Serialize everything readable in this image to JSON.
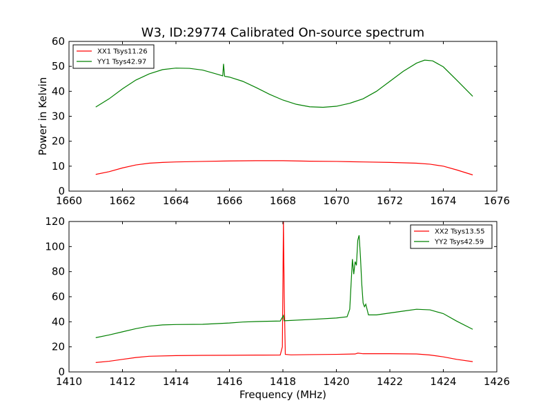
{
  "figure": {
    "title": "W3, ID:29774 Calibrated On-source spectrum"
  },
  "chart_data": [
    {
      "type": "line",
      "title": "W3, ID:29774 Calibrated On-source spectrum",
      "xlabel": "",
      "ylabel": "Power in Kelvin",
      "xlim": [
        1660,
        1676
      ],
      "ylim": [
        0,
        60
      ],
      "xticks": [
        "1660",
        "1662",
        "1664",
        "1666",
        "1668",
        "1670",
        "1672",
        "1674",
        "1676"
      ],
      "yticks": [
        "0",
        "10",
        "20",
        "30",
        "40",
        "50",
        "60"
      ],
      "grid": false,
      "legend_position": "top-left",
      "series": [
        {
          "name": "XX1 Tsys11.26",
          "color": "#ff0000",
          "points": [
            [
              1661.0,
              6.7
            ],
            [
              1661.5,
              7.8
            ],
            [
              1662.0,
              9.3
            ],
            [
              1662.5,
              10.5
            ],
            [
              1663.0,
              11.2
            ],
            [
              1663.5,
              11.5
            ],
            [
              1664.0,
              11.7
            ],
            [
              1665.0,
              11.9
            ],
            [
              1666.0,
              12.1
            ],
            [
              1667.0,
              12.2
            ],
            [
              1668.0,
              12.2
            ],
            [
              1669.0,
              12.0
            ],
            [
              1670.0,
              11.9
            ],
            [
              1671.0,
              11.7
            ],
            [
              1672.0,
              11.5
            ],
            [
              1673.0,
              11.2
            ],
            [
              1673.5,
              10.8
            ],
            [
              1674.0,
              10.0
            ],
            [
              1674.5,
              8.5
            ],
            [
              1675.1,
              6.5
            ]
          ]
        },
        {
          "name": "YY1 Tsys42.97",
          "color": "#008000",
          "points": [
            [
              1661.0,
              33.7
            ],
            [
              1661.5,
              37.0
            ],
            [
              1662.0,
              41.0
            ],
            [
              1662.5,
              44.5
            ],
            [
              1663.0,
              47.0
            ],
            [
              1663.5,
              48.7
            ],
            [
              1664.0,
              49.3
            ],
            [
              1664.5,
              49.2
            ],
            [
              1665.0,
              48.5
            ],
            [
              1665.5,
              47.0
            ],
            [
              1665.75,
              46.2
            ],
            [
              1665.78,
              51.0
            ],
            [
              1665.82,
              46.0
            ],
            [
              1666.0,
              45.7
            ],
            [
              1666.5,
              44.0
            ],
            [
              1667.0,
              41.5
            ],
            [
              1667.5,
              38.8
            ],
            [
              1668.0,
              36.5
            ],
            [
              1668.5,
              34.8
            ],
            [
              1669.0,
              33.8
            ],
            [
              1669.5,
              33.6
            ],
            [
              1670.0,
              34.0
            ],
            [
              1670.5,
              35.2
            ],
            [
              1671.0,
              37.0
            ],
            [
              1671.5,
              40.0
            ],
            [
              1672.0,
              44.0
            ],
            [
              1672.5,
              48.0
            ],
            [
              1673.0,
              51.3
            ],
            [
              1673.3,
              52.5
            ],
            [
              1673.6,
              52.2
            ],
            [
              1674.0,
              49.8
            ],
            [
              1674.5,
              44.5
            ],
            [
              1675.1,
              38.0
            ]
          ]
        }
      ]
    },
    {
      "type": "line",
      "title": "",
      "xlabel": "Frequency (MHz)",
      "ylabel": "",
      "xlim": [
        1410,
        1426
      ],
      "ylim": [
        0,
        120
      ],
      "xticks": [
        "1410",
        "1412",
        "1414",
        "1416",
        "1418",
        "1420",
        "1422",
        "1424",
        "1426"
      ],
      "yticks": [
        "0",
        "20",
        "40",
        "60",
        "80",
        "100",
        "120"
      ],
      "grid": false,
      "legend_position": "top-right",
      "series": [
        {
          "name": "XX2 Tsys13.55",
          "color": "#ff0000",
          "points": [
            [
              1411.0,
              7.5
            ],
            [
              1411.5,
              8.5
            ],
            [
              1412.0,
              10.0
            ],
            [
              1412.5,
              11.5
            ],
            [
              1413.0,
              12.5
            ],
            [
              1414.0,
              13.0
            ],
            [
              1415.0,
              13.2
            ],
            [
              1416.0,
              13.3
            ],
            [
              1417.0,
              13.4
            ],
            [
              1417.9,
              13.5
            ],
            [
              1417.98,
              20.0
            ],
            [
              1418.02,
              120.0
            ],
            [
              1418.05,
              60.0
            ],
            [
              1418.09,
              14.0
            ],
            [
              1418.3,
              13.6
            ],
            [
              1419.0,
              13.8
            ],
            [
              1420.0,
              14.0
            ],
            [
              1420.7,
              14.3
            ],
            [
              1420.8,
              15.0
            ],
            [
              1421.0,
              14.5
            ],
            [
              1422.0,
              14.5
            ],
            [
              1423.0,
              14.3
            ],
            [
              1423.5,
              13.5
            ],
            [
              1424.0,
              12.0
            ],
            [
              1424.5,
              10.0
            ],
            [
              1425.1,
              8.2
            ]
          ]
        },
        {
          "name": "YY2 Tsys42.59",
          "color": "#008000",
          "points": [
            [
              1411.0,
              27.3
            ],
            [
              1411.5,
              29.5
            ],
            [
              1412.0,
              32.0
            ],
            [
              1412.5,
              34.5
            ],
            [
              1413.0,
              36.5
            ],
            [
              1413.5,
              37.5
            ],
            [
              1414.0,
              37.8
            ],
            [
              1415.0,
              38.0
            ],
            [
              1416.0,
              39.0
            ],
            [
              1416.5,
              39.8
            ],
            [
              1417.0,
              40.2
            ],
            [
              1417.9,
              40.6
            ],
            [
              1418.02,
              45.0
            ],
            [
              1418.05,
              40.8
            ],
            [
              1419.0,
              41.8
            ],
            [
              1420.0,
              43.0
            ],
            [
              1420.4,
              44.0
            ],
            [
              1420.5,
              50.0
            ],
            [
              1420.6,
              90.0
            ],
            [
              1420.65,
              78.0
            ],
            [
              1420.7,
              88.0
            ],
            [
              1420.75,
              85.0
            ],
            [
              1420.8,
              105.0
            ],
            [
              1420.85,
              109.0
            ],
            [
              1420.9,
              92.0
            ],
            [
              1420.95,
              70.0
            ],
            [
              1421.0,
              55.0
            ],
            [
              1421.05,
              52.0
            ],
            [
              1421.1,
              54.0
            ],
            [
              1421.2,
              45.5
            ],
            [
              1421.5,
              45.5
            ],
            [
              1422.0,
              47.0
            ],
            [
              1422.5,
              48.5
            ],
            [
              1423.0,
              50.0
            ],
            [
              1423.5,
              49.5
            ],
            [
              1424.0,
              46.5
            ],
            [
              1424.5,
              40.5
            ],
            [
              1425.1,
              34.0
            ]
          ]
        }
      ]
    }
  ]
}
